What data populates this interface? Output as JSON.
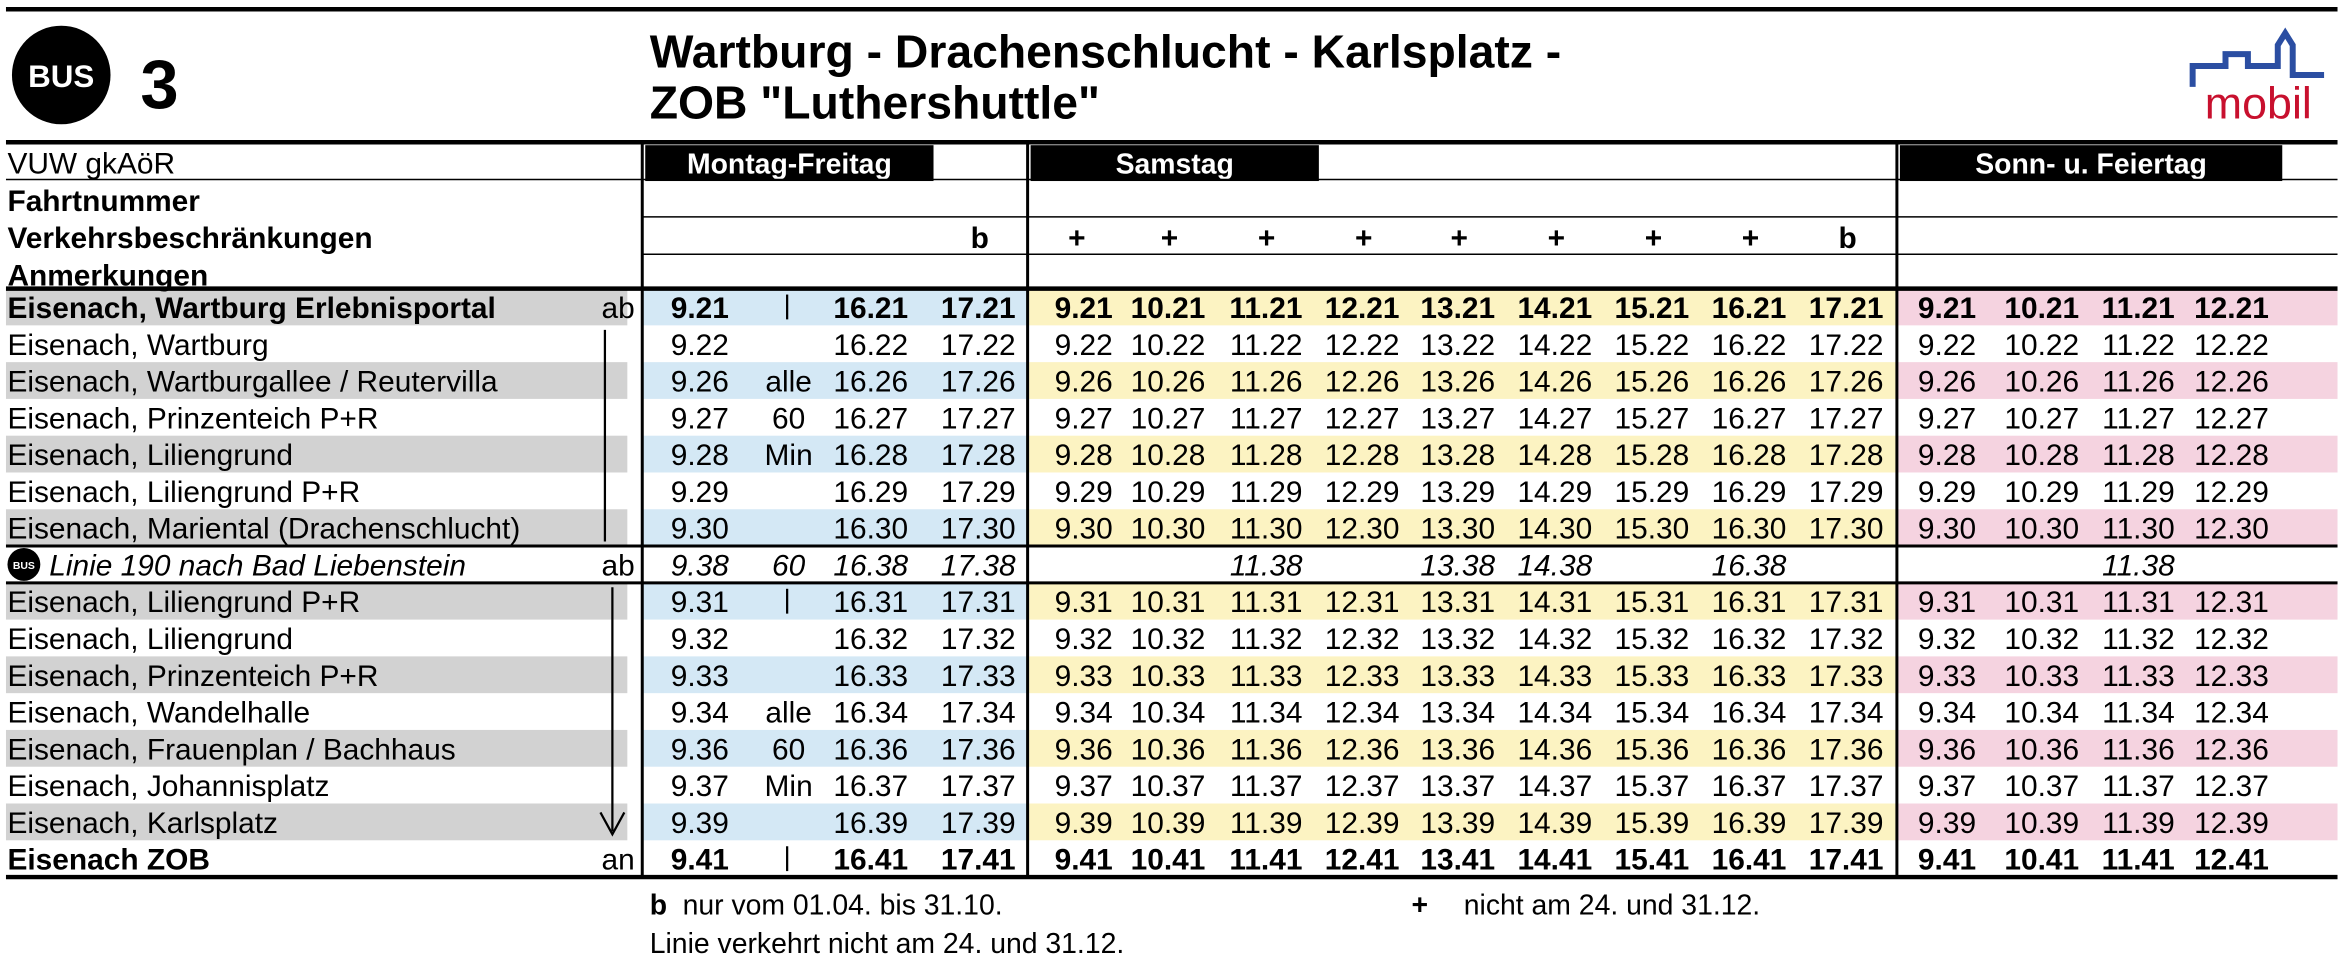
{
  "header": {
    "badge": "BUS",
    "line": "3",
    "title": [
      "Wartburg - Drachenschlucht - Karlsplatz -",
      "ZOB \"Luthershuttle\""
    ],
    "logo": "mobil"
  },
  "table": {
    "operator": "VUW gkAöR",
    "days": [
      "Montag-Freitag",
      "Samstag",
      "Sonn- u. Feiertag"
    ],
    "row_labels": [
      "Fahrtnummer",
      "Verkehrsbeschränkungen",
      "Anmerkungen"
    ],
    "restrictions": [
      null,
      null,
      null,
      "b",
      "+",
      "+",
      "+",
      "+",
      "+",
      "+",
      "+",
      "+",
      "b",
      null,
      null,
      null,
      null
    ],
    "stops": [
      {
        "name": "Eisenach, Wartburg Erlebnisportal",
        "mark": "ab",
        "times": [
          "9.21",
          null,
          "16.21",
          "17.21",
          "9.21",
          "10.21",
          "11.21",
          "12.21",
          "13.21",
          "14.21",
          "15.21",
          "16.21",
          "17.21",
          "9.21",
          "10.21",
          "11.21",
          "12.21"
        ]
      },
      {
        "name": "Eisenach, Wartburg",
        "times": [
          "9.22",
          null,
          "16.22",
          "17.22",
          "9.22",
          "10.22",
          "11.22",
          "12.22",
          "13.22",
          "14.22",
          "15.22",
          "16.22",
          "17.22",
          "9.22",
          "10.22",
          "11.22",
          "12.22"
        ]
      },
      {
        "name": "Eisenach, Wartburgallee / Reutervilla",
        "times": [
          "9.26",
          "alle",
          "16.26",
          "17.26",
          "9.26",
          "10.26",
          "11.26",
          "12.26",
          "13.26",
          "14.26",
          "15.26",
          "16.26",
          "17.26",
          "9.26",
          "10.26",
          "11.26",
          "12.26"
        ]
      },
      {
        "name": "Eisenach, Prinzenteich P+R",
        "times": [
          "9.27",
          "60",
          "16.27",
          "17.27",
          "9.27",
          "10.27",
          "11.27",
          "12.27",
          "13.27",
          "14.27",
          "15.27",
          "16.27",
          "17.27",
          "9.27",
          "10.27",
          "11.27",
          "12.27"
        ]
      },
      {
        "name": "Eisenach, Liliengrund",
        "times": [
          "9.28",
          "Min",
          "16.28",
          "17.28",
          "9.28",
          "10.28",
          "11.28",
          "12.28",
          "13.28",
          "14.28",
          "15.28",
          "16.28",
          "17.28",
          "9.28",
          "10.28",
          "11.28",
          "12.28"
        ]
      },
      {
        "name": "Eisenach, Liliengrund P+R",
        "times": [
          "9.29",
          null,
          "16.29",
          "17.29",
          "9.29",
          "10.29",
          "11.29",
          "12.29",
          "13.29",
          "14.29",
          "15.29",
          "16.29",
          "17.29",
          "9.29",
          "10.29",
          "11.29",
          "12.29"
        ]
      },
      {
        "name": "Eisenach, Mariental (Drachenschlucht)",
        "times": [
          "9.30",
          null,
          "16.30",
          "17.30",
          "9.30",
          "10.30",
          "11.30",
          "12.30",
          "13.30",
          "14.30",
          "15.30",
          "16.30",
          "17.30",
          "9.30",
          "10.30",
          "11.30",
          "12.30"
        ]
      },
      {
        "name": "Linie 190 nach Bad Liebenstein",
        "mark": "ab",
        "times": [
          "9.38",
          "60",
          "16.38",
          "17.38",
          null,
          null,
          "11.38",
          null,
          "13.38",
          "14.38",
          null,
          "16.38",
          null,
          null,
          null,
          "11.38",
          null
        ]
      },
      {
        "name": "Eisenach, Liliengrund P+R",
        "times": [
          "9.31",
          null,
          "16.31",
          "17.31",
          "9.31",
          "10.31",
          "11.31",
          "12.31",
          "13.31",
          "14.31",
          "15.31",
          "16.31",
          "17.31",
          "9.31",
          "10.31",
          "11.31",
          "12.31"
        ]
      },
      {
        "name": "Eisenach, Liliengrund",
        "times": [
          "9.32",
          null,
          "16.32",
          "17.32",
          "9.32",
          "10.32",
          "11.32",
          "12.32",
          "13.32",
          "14.32",
          "15.32",
          "16.32",
          "17.32",
          "9.32",
          "10.32",
          "11.32",
          "12.32"
        ]
      },
      {
        "name": "Eisenach, Prinzenteich P+R",
        "times": [
          "9.33",
          null,
          "16.33",
          "17.33",
          "9.33",
          "10.33",
          "11.33",
          "12.33",
          "13.33",
          "14.33",
          "15.33",
          "16.33",
          "17.33",
          "9.33",
          "10.33",
          "11.33",
          "12.33"
        ]
      },
      {
        "name": "Eisenach, Wandelhalle",
        "times": [
          "9.34",
          "alle",
          "16.34",
          "17.34",
          "9.34",
          "10.34",
          "11.34",
          "12.34",
          "13.34",
          "14.34",
          "15.34",
          "16.34",
          "17.34",
          "9.34",
          "10.34",
          "11.34",
          "12.34"
        ]
      },
      {
        "name": "Eisenach, Frauenplan / Bachhaus",
        "times": [
          "9.36",
          "60",
          "16.36",
          "17.36",
          "9.36",
          "10.36",
          "11.36",
          "12.36",
          "13.36",
          "14.36",
          "15.36",
          "16.36",
          "17.36",
          "9.36",
          "10.36",
          "11.36",
          "12.36"
        ]
      },
      {
        "name": "Eisenach, Johannisplatz",
        "times": [
          "9.37",
          "Min",
          "16.37",
          "17.37",
          "9.37",
          "10.37",
          "11.37",
          "12.37",
          "13.37",
          "14.37",
          "15.37",
          "16.37",
          "17.37",
          "9.37",
          "10.37",
          "11.37",
          "12.37"
        ]
      },
      {
        "name": "Eisenach, Karlsplatz",
        "times": [
          "9.39",
          null,
          "16.39",
          "17.39",
          "9.39",
          "10.39",
          "11.39",
          "12.39",
          "13.39",
          "14.39",
          "15.39",
          "16.39",
          "17.39",
          "9.39",
          "10.39",
          "11.39",
          "12.39"
        ]
      },
      {
        "name": "Eisenach ZOB",
        "mark": "an",
        "times": [
          "9.41",
          null,
          "16.41",
          "17.41",
          "9.41",
          "10.41",
          "11.41",
          "12.41",
          "13.41",
          "14.41",
          "15.41",
          "16.41",
          "17.41",
          "9.41",
          "10.41",
          "11.41",
          "12.41"
        ]
      }
    ]
  },
  "footnotes": [
    {
      "symbol": "b",
      "text": "nur vom 01.04. bis 31.10."
    },
    {
      "symbol": "+",
      "text": "nicht am 24. und 31.12."
    },
    {
      "text": "Linie verkehrt nicht am 24. und 31.12."
    }
  ]
}
